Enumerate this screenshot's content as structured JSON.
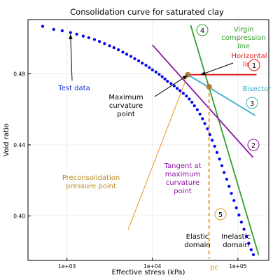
{
  "chart_data": {
    "type": "scatter",
    "title": "Consolidation curve for saturated clay",
    "xlabel": "Effective stress (kPa)",
    "ylabel": "Void ratio",
    "xscale": "log",
    "xlim": [
      350,
      230000
    ],
    "ylim": [
      0.375,
      0.5105
    ],
    "grid": true,
    "x_ticks": [
      {
        "value": 1000,
        "label": "1e+03"
      },
      {
        "value": 10000,
        "label": "1e+04"
      },
      {
        "value": 100000,
        "label": "1e+05"
      }
    ],
    "y_ticks": [
      {
        "value": 0.4,
        "label": "0.40"
      },
      {
        "value": 0.44,
        "label": "0.44"
      },
      {
        "value": 0.48,
        "label": "0.48"
      }
    ],
    "series": [
      {
        "color": "#0000ee",
        "points": [
          [
            520,
            0.5067
          ],
          [
            700,
            0.505
          ],
          [
            880,
            0.5042
          ],
          [
            1100,
            0.5032
          ],
          [
            1300,
            0.5023
          ],
          [
            1550,
            0.5012
          ],
          [
            1800,
            0.5003
          ],
          [
            2100,
            0.4993
          ],
          [
            2400,
            0.4982
          ],
          [
            2750,
            0.497
          ],
          [
            3150,
            0.4958
          ],
          [
            3550,
            0.4947
          ],
          [
            4000,
            0.4935
          ],
          [
            4500,
            0.4922
          ],
          [
            5000,
            0.491
          ],
          [
            5600,
            0.4898
          ],
          [
            6200,
            0.4885
          ],
          [
            6900,
            0.4873
          ],
          [
            7600,
            0.486
          ],
          [
            8400,
            0.4848
          ],
          [
            9200,
            0.4835
          ],
          [
            10000,
            0.4822
          ],
          [
            11000,
            0.481
          ],
          [
            12000,
            0.4797
          ],
          [
            13000,
            0.4784
          ],
          [
            14000,
            0.4771
          ],
          [
            15000,
            0.4758
          ],
          [
            16500,
            0.4745
          ],
          [
            18000,
            0.4732
          ],
          [
            19500,
            0.4718
          ],
          [
            21000,
            0.4705
          ],
          [
            23000,
            0.469
          ],
          [
            25000,
            0.4675
          ],
          [
            27000,
            0.4658
          ],
          [
            29000,
            0.464
          ],
          [
            31000,
            0.462
          ],
          [
            33500,
            0.4598
          ],
          [
            36000,
            0.4573
          ],
          [
            38500,
            0.4547
          ],
          [
            41000,
            0.452
          ],
          [
            44000,
            0.449
          ],
          [
            47000,
            0.4458
          ],
          [
            50000,
            0.4426
          ],
          [
            53500,
            0.4392
          ],
          [
            57000,
            0.4357
          ],
          [
            61000,
            0.432
          ],
          [
            65000,
            0.4283
          ],
          [
            69000,
            0.4245
          ],
          [
            74000,
            0.4207
          ],
          [
            79000,
            0.4167
          ],
          [
            84000,
            0.4127
          ],
          [
            90000,
            0.4087
          ],
          [
            96000,
            0.4046
          ],
          [
            103000,
            0.4005
          ],
          [
            110000,
            0.3965
          ],
          [
            118000,
            0.3925
          ],
          [
            126000,
            0.3885
          ],
          [
            134000,
            0.3846
          ],
          [
            143000,
            0.381
          ],
          [
            152000,
            0.3782
          ]
        ]
      }
    ],
    "lines": [
      {
        "name": "Virgin compression line",
        "color": "#33a02c",
        "from": [
          28000,
          0.5074
        ],
        "to": [
          175000,
          0.378
        ]
      },
      {
        "name": "Horizontal line",
        "color": "#e31a1c",
        "from": [
          26000,
          0.4795
        ],
        "to": [
          165000,
          0.4795
        ]
      },
      {
        "name": "Bisector",
        "color": "#36b0c4",
        "from": [
          26000,
          0.4795
        ],
        "to": [
          160000,
          0.4565
        ]
      },
      {
        "name": "Tangent at maximum curvature point",
        "color": "#8e12a4",
        "from": [
          10000,
          0.4962
        ],
        "to": [
          150000,
          0.433
        ]
      },
      {
        "name": "Preconsolidation pressure",
        "color": "#e8931c",
        "from": [
          46000,
          0.4727
        ],
        "to": [
          46000,
          0.376
        ],
        "dashed": true
      },
      {
        "name": "Preconsolidation to maximum curvature",
        "color": "#e8931c",
        "from": [
          5200,
          0.3923
        ],
        "to": [
          26000,
          0.4795
        ],
        "thin": true
      }
    ],
    "markers": [
      {
        "label": "Maximum curvature point",
        "x": 26000,
        "y": 0.4795,
        "color": "#b07a36"
      },
      {
        "label": "Preconsolidation pressure point",
        "x": 46000,
        "y": 0.4727,
        "color": "#b07a36"
      }
    ],
    "annotations": [
      {
        "text": [
          "Test data"
        ],
        "color": "#1a2fd8",
        "arrow_to": [
          1100,
          0.502
        ]
      },
      {
        "text": [
          "Maximum",
          "curvature",
          "point"
        ],
        "color": "#000000",
        "arrow_to": [
          25500,
          0.479
        ]
      },
      {
        "text": [
          "Virgin",
          "compression",
          "line"
        ],
        "color": "#33a02c"
      },
      {
        "text": [
          "Horizontal",
          "line"
        ],
        "color": "#e31a1c",
        "arrow_to": [
          37000,
          0.4795
        ]
      },
      {
        "text": [
          "Bisector"
        ],
        "color": "#36b0c4"
      },
      {
        "text": [
          "Preconsolidation",
          "pressure point"
        ],
        "color": "#b8882a"
      },
      {
        "text": [
          "Tangent at",
          "maximum",
          "curvature",
          "point"
        ],
        "color": "#8e12a4"
      },
      {
        "text": [
          "Elastic",
          "domain"
        ],
        "color": "#000000"
      },
      {
        "text": [
          "Inelastic",
          "domain"
        ],
        "color": "#000000"
      },
      {
        "text": [
          "pc"
        ],
        "color": "#e8931c"
      }
    ],
    "circled_numbers": [
      {
        "label": "1",
        "color": "#e31a1c"
      },
      {
        "label": "2",
        "color": "#8e12a4"
      },
      {
        "label": "3",
        "color": "#36b0c4"
      },
      {
        "label": "4",
        "color": "#33a02c"
      },
      {
        "label": "5",
        "color": "#e8931c"
      }
    ]
  }
}
